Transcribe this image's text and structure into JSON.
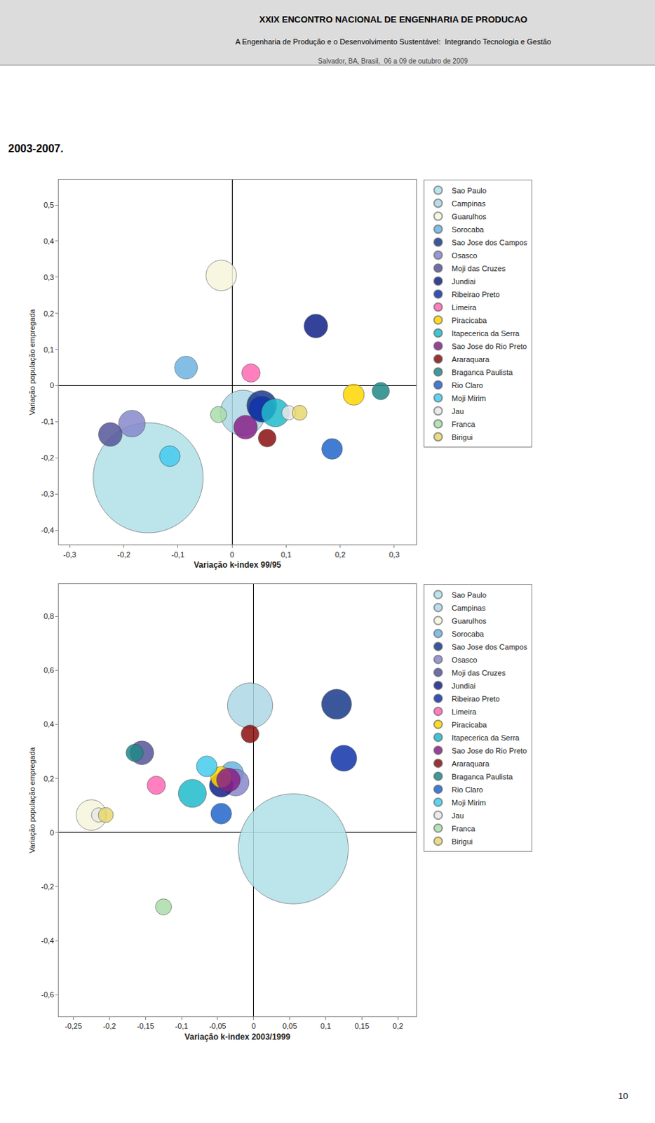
{
  "title": "XXIX ENCONTRO NACIONAL DE ENGENHARIA DE PRODUCAO",
  "subtitle": [
    "A Engenharia de Produção e o Desenvolvimento Sustentável:  Integrando Tecnologia e Gestão",
    "Salvador, BA, Brasil,  06 a 09 de outubro de 2009"
  ],
  "annotations": [
    "2003-2007.",
    "10"
  ],
  "chart_data": [
    {
      "type": "scatter",
      "xlabel": "Variação k-index 99/95",
      "ylabel": "Variação população empregada",
      "xlim": [
        -0.32,
        0.34
      ],
      "ylim": [
        -0.44,
        0.57
      ],
      "xticks": [
        {
          "value": -0.3,
          "label": "-0,3"
        },
        {
          "value": -0.2,
          "label": "-0,2"
        },
        {
          "value": -0.1,
          "label": "-0,1"
        },
        0,
        {
          "value": 0.1,
          "label": "0,1"
        },
        {
          "value": 0.2,
          "label": "0,2"
        },
        {
          "value": 0.3,
          "label": "0,3"
        }
      ],
      "yticks": [
        {
          "value": -0.4,
          "label": "-0,4"
        },
        {
          "value": -0.3,
          "label": "-0,3"
        },
        {
          "value": -0.2,
          "label": "-0,2"
        },
        {
          "value": -0.1,
          "label": "-0,1"
        },
        0,
        {
          "value": 0.1,
          "label": "0,1"
        },
        {
          "value": 0.2,
          "label": "0,2"
        },
        {
          "value": 0.3,
          "label": "0,3"
        },
        {
          "value": 0.4,
          "label": "0,4"
        },
        {
          "value": 0.5,
          "label": "0,5"
        }
      ],
      "grid": false,
      "legend": "right",
      "series": [
        {
          "name": "Sao Paulo",
          "color": "#B0E0E8",
          "x": [
            -0.155
          ],
          "y": [
            -0.255
          ],
          "size": [
            6500
          ]
        },
        {
          "name": "Campinas",
          "color": "#ADD8E6",
          "x": [
            0.02
          ],
          "y": [
            -0.075
          ],
          "size": [
            1100
          ]
        },
        {
          "name": "Guarulhos",
          "color": "#F5F5DC",
          "x": [
            -0.02
          ],
          "y": [
            0.305
          ],
          "size": [
            500
          ]
        },
        {
          "name": "Sorocaba",
          "color": "#6EB5E0",
          "x": [
            -0.085
          ],
          "y": [
            0.05
          ],
          "size": [
            280
          ]
        },
        {
          "name": "Sao Jose dos Campos",
          "color": "#1A3A8A",
          "x": [
            0.055
          ],
          "y": [
            -0.055
          ],
          "size": [
            480
          ]
        },
        {
          "name": "Osasco",
          "color": "#8888CC",
          "x": [
            -0.185
          ],
          "y": [
            -0.105
          ],
          "size": [
            380
          ]
        },
        {
          "name": "Moji das Cruzes",
          "color": "#555599",
          "x": [
            -0.225
          ],
          "y": [
            -0.135
          ],
          "size": [
            300
          ]
        },
        {
          "name": "Jundiai",
          "color": "#112288",
          "x": [
            0.155
          ],
          "y": [
            0.165
          ],
          "size": [
            300
          ]
        },
        {
          "name": "Ribeirao Preto",
          "color": "#1133AA",
          "x": [
            0.055
          ],
          "y": [
            -0.065
          ],
          "size": [
            360
          ]
        },
        {
          "name": "Limeira",
          "color": "#FF69B4",
          "x": [
            0.035
          ],
          "y": [
            0.035
          ],
          "size": [
            180
          ]
        },
        {
          "name": "Piracicaba",
          "color": "#FFD700",
          "x": [
            0.225
          ],
          "y": [
            -0.025
          ],
          "size": [
            240
          ]
        },
        {
          "name": "Itapecerica da Serra",
          "color": "#22BBCC",
          "x": [
            0.08
          ],
          "y": [
            -0.075
          ],
          "size": [
            420
          ]
        },
        {
          "name": "Sao Jose do Rio Preto",
          "color": "#882288",
          "x": [
            0.025
          ],
          "y": [
            -0.115
          ],
          "size": [
            300
          ]
        },
        {
          "name": "Araraquara",
          "color": "#8B1010",
          "x": [
            0.065
          ],
          "y": [
            -0.145
          ],
          "size": [
            170
          ]
        },
        {
          "name": "Braganca Paulista",
          "color": "#228888",
          "x": [
            0.275
          ],
          "y": [
            -0.015
          ],
          "size": [
            160
          ]
        },
        {
          "name": "Rio Claro",
          "color": "#2266CC",
          "x": [
            0.185
          ],
          "y": [
            -0.175
          ],
          "size": [
            230
          ]
        },
        {
          "name": "Moji Mirim",
          "color": "#44CCEE",
          "x": [
            -0.115
          ],
          "y": [
            -0.195
          ],
          "size": [
            230
          ]
        },
        {
          "name": "Jau",
          "color": "#E8E8E8",
          "x": [
            0.105
          ],
          "y": [
            -0.075
          ],
          "size": [
            110
          ]
        },
        {
          "name": "Franca",
          "color": "#AADDAA",
          "x": [
            -0.025
          ],
          "y": [
            -0.08
          ],
          "size": [
            140
          ]
        },
        {
          "name": "Birigui",
          "color": "#E8D870",
          "x": [
            0.125
          ],
          "y": [
            -0.075
          ],
          "size": [
            120
          ]
        }
      ]
    },
    {
      "type": "scatter",
      "xlabel": "Variação k-index 2003/1999",
      "ylabel": "Variação população empregada",
      "xlim": [
        -0.27,
        0.225
      ],
      "ylim": [
        -0.68,
        0.92
      ],
      "xticks": [
        {
          "value": -0.25,
          "label": "-0,25"
        },
        {
          "value": -0.2,
          "label": "-0,2"
        },
        {
          "value": -0.15,
          "label": "-0,15"
        },
        {
          "value": -0.1,
          "label": "-0,1"
        },
        {
          "value": -0.05,
          "label": "-0,05"
        },
        0,
        {
          "value": 0.05,
          "label": "0,05"
        },
        {
          "value": 0.1,
          "label": "0,1"
        },
        {
          "value": 0.15,
          "label": "0,15"
        },
        {
          "value": 0.2,
          "label": "0,2"
        }
      ],
      "yticks": [
        {
          "value": -0.6,
          "label": "-0,6"
        },
        {
          "value": -0.4,
          "label": "-0,4"
        },
        {
          "value": -0.2,
          "label": "-0,2"
        },
        0,
        {
          "value": 0.2,
          "label": "0,2"
        },
        {
          "value": 0.4,
          "label": "0,4"
        },
        {
          "value": 0.6,
          "label": "0,6"
        },
        {
          "value": 0.8,
          "label": "0,8"
        }
      ],
      "grid": false,
      "legend": "right",
      "series": [
        {
          "name": "Sao Paulo",
          "color": "#B0E0E8",
          "x": [
            0.055
          ],
          "y": [
            -0.06
          ],
          "size": [
            6500
          ]
        },
        {
          "name": "Campinas",
          "color": "#ADD8E6",
          "x": [
            -0.005
          ],
          "y": [
            0.47
          ],
          "size": [
            1100
          ]
        },
        {
          "name": "Guarulhos",
          "color": "#F5F5DC",
          "x": [
            -0.225
          ],
          "y": [
            0.065
          ],
          "size": [
            500
          ]
        },
        {
          "name": "Sorocaba",
          "color": "#6EB5E0",
          "x": [
            -0.03
          ],
          "y": [
            0.22
          ],
          "size": [
            280
          ]
        },
        {
          "name": "Sao Jose dos Campos",
          "color": "#1A3A8A",
          "x": [
            0.115
          ],
          "y": [
            0.475
          ],
          "size": [
            480
          ]
        },
        {
          "name": "Osasco",
          "color": "#8888CC",
          "x": [
            -0.025
          ],
          "y": [
            0.185
          ],
          "size": [
            380
          ]
        },
        {
          "name": "Moji das Cruzes",
          "color": "#555599",
          "x": [
            -0.155
          ],
          "y": [
            0.295
          ],
          "size": [
            300
          ]
        },
        {
          "name": "Jundiai",
          "color": "#112288",
          "x": [
            -0.045
          ],
          "y": [
            0.175
          ],
          "size": [
            300
          ]
        },
        {
          "name": "Ribeirao Preto",
          "color": "#1133AA",
          "x": [
            0.125
          ],
          "y": [
            0.275
          ],
          "size": [
            360
          ]
        },
        {
          "name": "Limeira",
          "color": "#FF69B4",
          "x": [
            -0.135
          ],
          "y": [
            0.175
          ],
          "size": [
            180
          ]
        },
        {
          "name": "Piracicaba",
          "color": "#FFD700",
          "x": [
            -0.045
          ],
          "y": [
            0.205
          ],
          "size": [
            240
          ]
        },
        {
          "name": "Itapecerica da Serra",
          "color": "#22BBCC",
          "x": [
            -0.085
          ],
          "y": [
            0.145
          ],
          "size": [
            420
          ]
        },
        {
          "name": "Sao Jose do Rio Preto",
          "color": "#882288",
          "x": [
            -0.035
          ],
          "y": [
            0.195
          ],
          "size": [
            300
          ]
        },
        {
          "name": "Araraquara",
          "color": "#8B1010",
          "x": [
            -0.005
          ],
          "y": [
            0.365
          ],
          "size": [
            170
          ]
        },
        {
          "name": "Braganca Paulista",
          "color": "#228888",
          "x": [
            -0.165
          ],
          "y": [
            0.295
          ],
          "size": [
            160
          ]
        },
        {
          "name": "Rio Claro",
          "color": "#2266CC",
          "x": [
            -0.045
          ],
          "y": [
            0.07
          ],
          "size": [
            230
          ]
        },
        {
          "name": "Moji Mirim",
          "color": "#44CCEE",
          "x": [
            -0.065
          ],
          "y": [
            0.245
          ],
          "size": [
            230
          ]
        },
        {
          "name": "Jau",
          "color": "#E8E8E8",
          "x": [
            -0.215
          ],
          "y": [
            0.065
          ],
          "size": [
            110
          ]
        },
        {
          "name": "Franca",
          "color": "#AADDAA",
          "x": [
            -0.125
          ],
          "y": [
            -0.275
          ],
          "size": [
            140
          ]
        },
        {
          "name": "Birigui",
          "color": "#E8D870",
          "x": [
            -0.205
          ],
          "y": [
            0.065
          ],
          "size": [
            120
          ]
        }
      ]
    }
  ]
}
